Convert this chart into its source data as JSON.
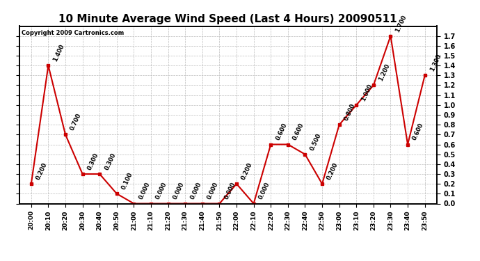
{
  "title": "10 Minute Average Wind Speed (Last 4 Hours) 20090511",
  "copyright": "Copyright 2009 Cartronics.com",
  "x_labels": [
    "20:00",
    "20:10",
    "20:20",
    "20:30",
    "20:40",
    "20:50",
    "21:00",
    "21:10",
    "21:20",
    "21:30",
    "21:40",
    "21:50",
    "22:00",
    "22:10",
    "22:20",
    "22:30",
    "22:40",
    "22:50",
    "23:00",
    "23:10",
    "23:20",
    "23:30",
    "23:40",
    "23:50"
  ],
  "y_values": [
    0.2,
    1.4,
    0.7,
    0.3,
    0.3,
    0.1,
    0.0,
    0.0,
    0.0,
    0.0,
    0.0,
    0.0,
    0.2,
    0.0,
    0.6,
    0.6,
    0.5,
    0.2,
    0.8,
    1.0,
    1.2,
    1.7,
    0.6,
    1.3
  ],
  "line_color": "#cc0000",
  "marker_color": "#cc0000",
  "background_color": "#ffffff",
  "grid_color": "#bbbbbb",
  "title_fontsize": 11,
  "ylim": [
    0.0,
    1.8
  ],
  "yticks": [
    0.0,
    0.1,
    0.2,
    0.3,
    0.4,
    0.5,
    0.6,
    0.7,
    0.8,
    0.9,
    1.0,
    1.1,
    1.2,
    1.3,
    1.4,
    1.5,
    1.6,
    1.7
  ],
  "ytick_labels": [
    "0.0",
    "0.1",
    "0.2",
    "0.3",
    "0.4",
    "0.5",
    "0.6",
    "0.7",
    "0.8",
    "0.9",
    "1.0",
    "1.1",
    "1.2",
    "1.3",
    "1.4",
    "1.5",
    "1.6",
    "1.7"
  ]
}
